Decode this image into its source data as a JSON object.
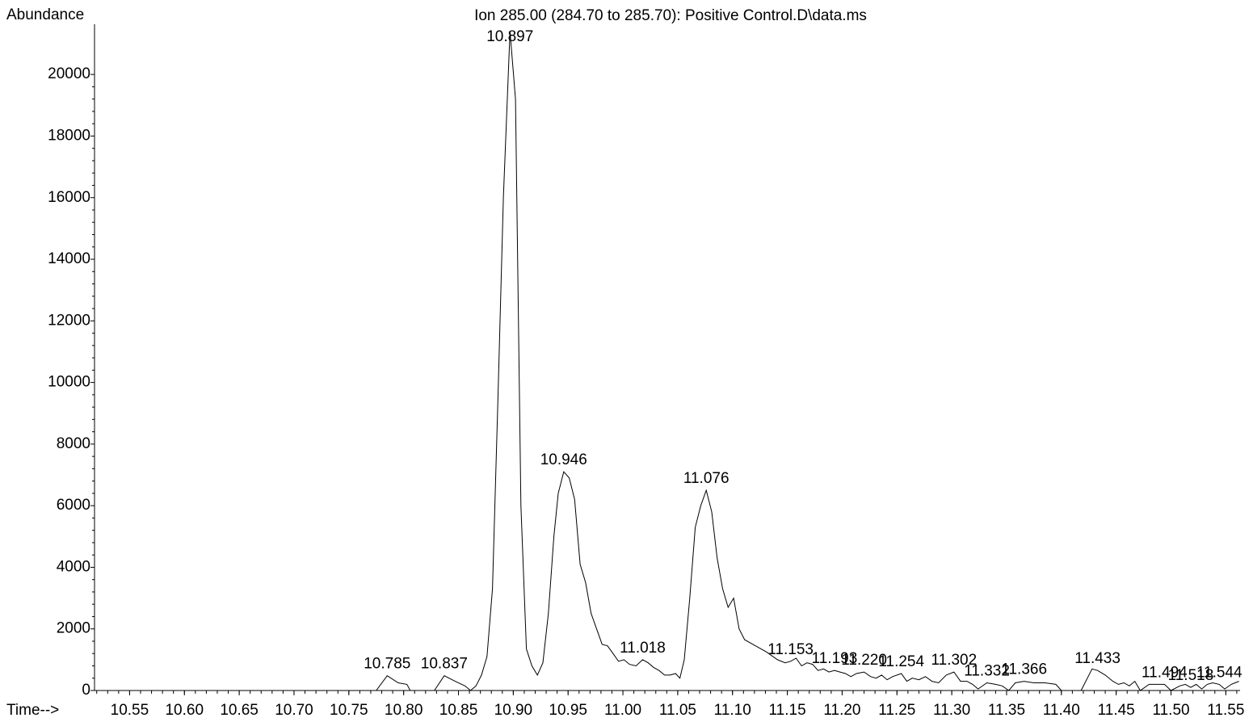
{
  "chart_data": {
    "type": "line",
    "title": "Ion 285.00 (284.70 to 285.70): Positive Control.D\\data.ms",
    "y_label": "Abundance",
    "x_label": "Time-->",
    "color": "#000000",
    "xlim": [
      10.518,
      11.563
    ],
    "ylim": [
      0,
      21630
    ],
    "xticks": [
      10.55,
      {
        "value": 10.6,
        "label": "10.60"
      },
      10.65,
      {
        "value": 10.7,
        "label": "10.70"
      },
      10.75,
      {
        "value": 10.8,
        "label": "10.80"
      },
      10.85,
      {
        "value": 10.9,
        "label": "10.90"
      },
      10.95,
      {
        "value": 11.0,
        "label": "11.00"
      },
      11.05,
      {
        "value": 11.1,
        "label": "11.10"
      },
      11.15,
      {
        "value": 11.2,
        "label": "11.20"
      },
      11.25,
      {
        "value": 11.3,
        "label": "11.30"
      },
      11.35,
      {
        "value": 11.4,
        "label": "11.40"
      },
      11.45,
      {
        "value": 11.5,
        "label": "11.50"
      },
      11.55
    ],
    "yticks": [
      0,
      2000,
      4000,
      6000,
      8000,
      10000,
      12000,
      14000,
      16000,
      18000,
      20000
    ],
    "peak_labels": [
      10.785,
      10.837,
      10.897,
      10.946,
      11.018,
      11.076,
      11.153,
      11.193,
      {
        "value": 11.22,
        "label": "11.220"
      },
      11.254,
      11.302,
      11.332,
      11.366,
      11.433,
      11.494,
      11.518,
      11.544
    ],
    "x": [
      10.518,
      10.775,
      10.785,
      10.795,
      10.803,
      10.806,
      10.828,
      10.837,
      10.847,
      10.856,
      10.861,
      10.866,
      10.871,
      10.876,
      10.881,
      10.886,
      10.891,
      10.897,
      10.902,
      10.907,
      10.912,
      10.917,
      10.922,
      10.927,
      10.932,
      10.937,
      10.941,
      10.946,
      10.951,
      10.956,
      10.961,
      10.966,
      10.971,
      10.976,
      10.981,
      10.986,
      10.991,
      10.996,
      11.001,
      11.006,
      11.012,
      11.018,
      11.023,
      11.028,
      11.033,
      11.038,
      11.043,
      11.048,
      11.052,
      11.056,
      11.061,
      11.066,
      11.071,
      11.076,
      11.081,
      11.086,
      11.091,
      11.096,
      11.101,
      11.106,
      11.111,
      11.121,
      11.131,
      11.141,
      11.148,
      11.153,
      11.158,
      11.163,
      11.168,
      11.173,
      11.178,
      11.183,
      11.188,
      11.193,
      11.198,
      11.203,
      11.208,
      11.213,
      11.22,
      11.226,
      11.231,
      11.236,
      11.241,
      11.246,
      11.254,
      11.259,
      11.264,
      11.27,
      11.276,
      11.282,
      11.288,
      11.295,
      11.302,
      11.308,
      11.314,
      11.319,
      11.324,
      11.332,
      11.34,
      11.346,
      11.352,
      11.358,
      11.366,
      11.375,
      11.385,
      11.395,
      11.4,
      11.418,
      11.428,
      11.433,
      11.44,
      11.447,
      11.452,
      11.457,
      11.462,
      11.467,
      11.472,
      11.48,
      11.494,
      11.5,
      11.508,
      11.513,
      11.518,
      11.523,
      11.528,
      11.533,
      11.538,
      11.544,
      11.549,
      11.555,
      11.562
    ],
    "y": [
      0,
      0,
      480,
      250,
      200,
      0,
      0,
      480,
      300,
      150,
      0,
      150,
      500,
      1100,
      3300,
      9500,
      16000,
      21400,
      19200,
      6000,
      1350,
      800,
      500,
      900,
      2500,
      5000,
      6400,
      7100,
      6900,
      6200,
      4100,
      3500,
      2500,
      2000,
      1500,
      1450,
      1200,
      950,
      1000,
      850,
      800,
      1000,
      900,
      750,
      650,
      500,
      500,
      550,
      400,
      1000,
      3000,
      5300,
      6000,
      6500,
      5800,
      4300,
      3300,
      2700,
      3000,
      2000,
      1650,
      1450,
      1250,
      1000,
      900,
      950,
      1050,
      800,
      900,
      850,
      650,
      700,
      600,
      650,
      600,
      550,
      450,
      550,
      600,
      450,
      400,
      500,
      350,
      450,
      550,
      300,
      400,
      350,
      450,
      300,
      250,
      500,
      600,
      300,
      300,
      200,
      50,
      250,
      200,
      150,
      0,
      250,
      300,
      250,
      250,
      200,
      0,
      0,
      700,
      650,
      500,
      300,
      200,
      250,
      150,
      300,
      0,
      200,
      200,
      0,
      150,
      200,
      100,
      200,
      50,
      200,
      250,
      200,
      50,
      200,
      300
    ]
  }
}
